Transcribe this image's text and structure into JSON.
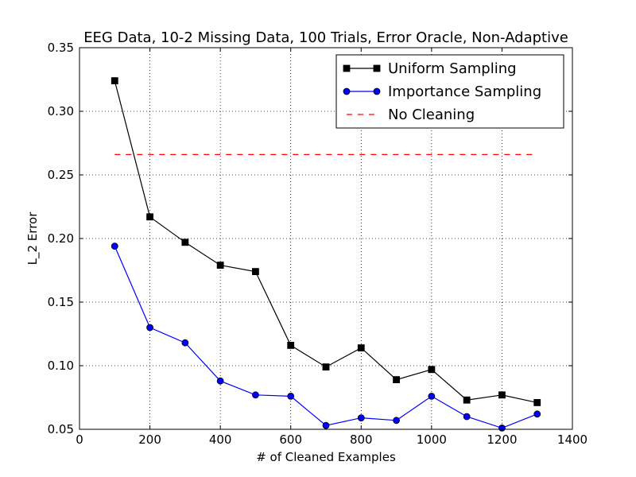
{
  "chart_data": {
    "type": "line",
    "title": "EEG Data, 10-2 Missing Data, 100 Trials, Error Oracle, Non-Adaptive",
    "xlabel": "# of Cleaned Examples",
    "ylabel": "L_2 Error",
    "xlim": [
      0,
      1400
    ],
    "ylim": [
      0.05,
      0.35
    ],
    "xticks": [
      0,
      200,
      400,
      600,
      800,
      1000,
      1200,
      1400
    ],
    "yticks": [
      0.05,
      0.1,
      0.15,
      0.2,
      0.25,
      0.3,
      0.35
    ],
    "grid": true,
    "legend_position": "top-right",
    "x": [
      100,
      200,
      300,
      400,
      500,
      600,
      700,
      800,
      900,
      1000,
      1100,
      1200,
      1300
    ],
    "series": [
      {
        "name": "Uniform Sampling",
        "color": "#000000",
        "marker": "square",
        "linestyle": "solid",
        "values": [
          0.324,
          0.217,
          0.197,
          0.179,
          0.174,
          0.116,
          0.099,
          0.114,
          0.089,
          0.097,
          0.073,
          0.077,
          0.071
        ]
      },
      {
        "name": "Importance Sampling",
        "color": "#0000ff",
        "marker": "circle",
        "linestyle": "solid",
        "values": [
          0.194,
          0.13,
          0.118,
          0.088,
          0.077,
          0.076,
          0.053,
          0.059,
          0.057,
          0.076,
          0.06,
          0.051,
          0.062
        ]
      },
      {
        "name": "No Cleaning",
        "color": "#ff0000",
        "marker": "none",
        "linestyle": "dashed",
        "values": [
          0.266,
          0.266,
          0.266,
          0.266,
          0.266,
          0.266,
          0.266,
          0.266,
          0.266,
          0.266,
          0.266,
          0.266,
          0.266
        ]
      }
    ]
  }
}
